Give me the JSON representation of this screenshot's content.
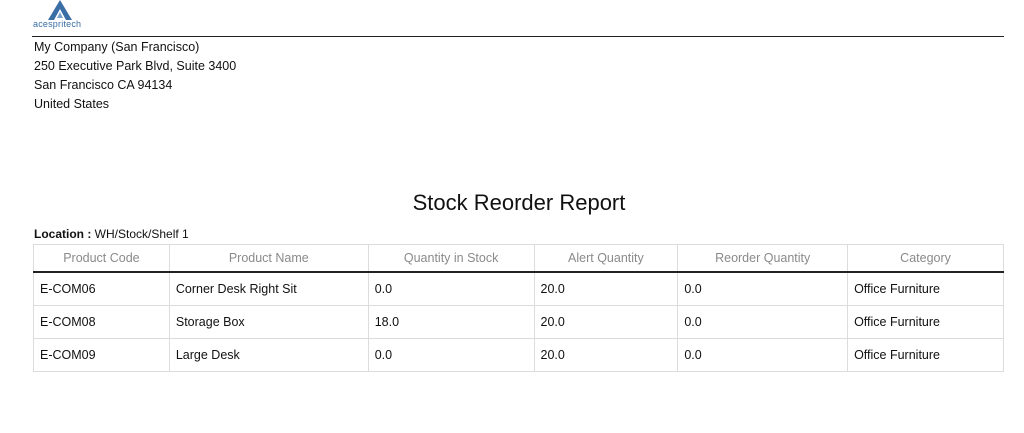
{
  "company": {
    "logo_text": "acespritech",
    "name": "My Company (San Francisco)",
    "address_line1": "250 Executive Park Blvd, Suite 3400",
    "address_line2": "San Francisco CA 94134",
    "country": "United States"
  },
  "report": {
    "title": "Stock Reorder Report",
    "location_label": "Location :",
    "location_value": "WH/Stock/Shelf 1"
  },
  "table": {
    "columns": [
      "Product Code",
      "Product Name",
      "Quantity in Stock",
      "Alert Quantity",
      "Reorder Quantity",
      "Category"
    ],
    "rows": [
      [
        "E-COM06",
        "Corner Desk Right Sit",
        "0.0",
        "20.0",
        "0.0",
        "Office Furniture"
      ],
      [
        "E-COM08",
        "Storage Box",
        "18.0",
        "20.0",
        "0.0",
        "Office Furniture"
      ],
      [
        "E-COM09",
        "Large Desk",
        "0.0",
        "20.0",
        "0.0",
        "Office Furniture"
      ]
    ]
  },
  "colors": {
    "logo_blue": "#3a6ea5",
    "header_text": "#8a8a8a",
    "rule": "#222222",
    "grid": "#dcdcdc"
  }
}
